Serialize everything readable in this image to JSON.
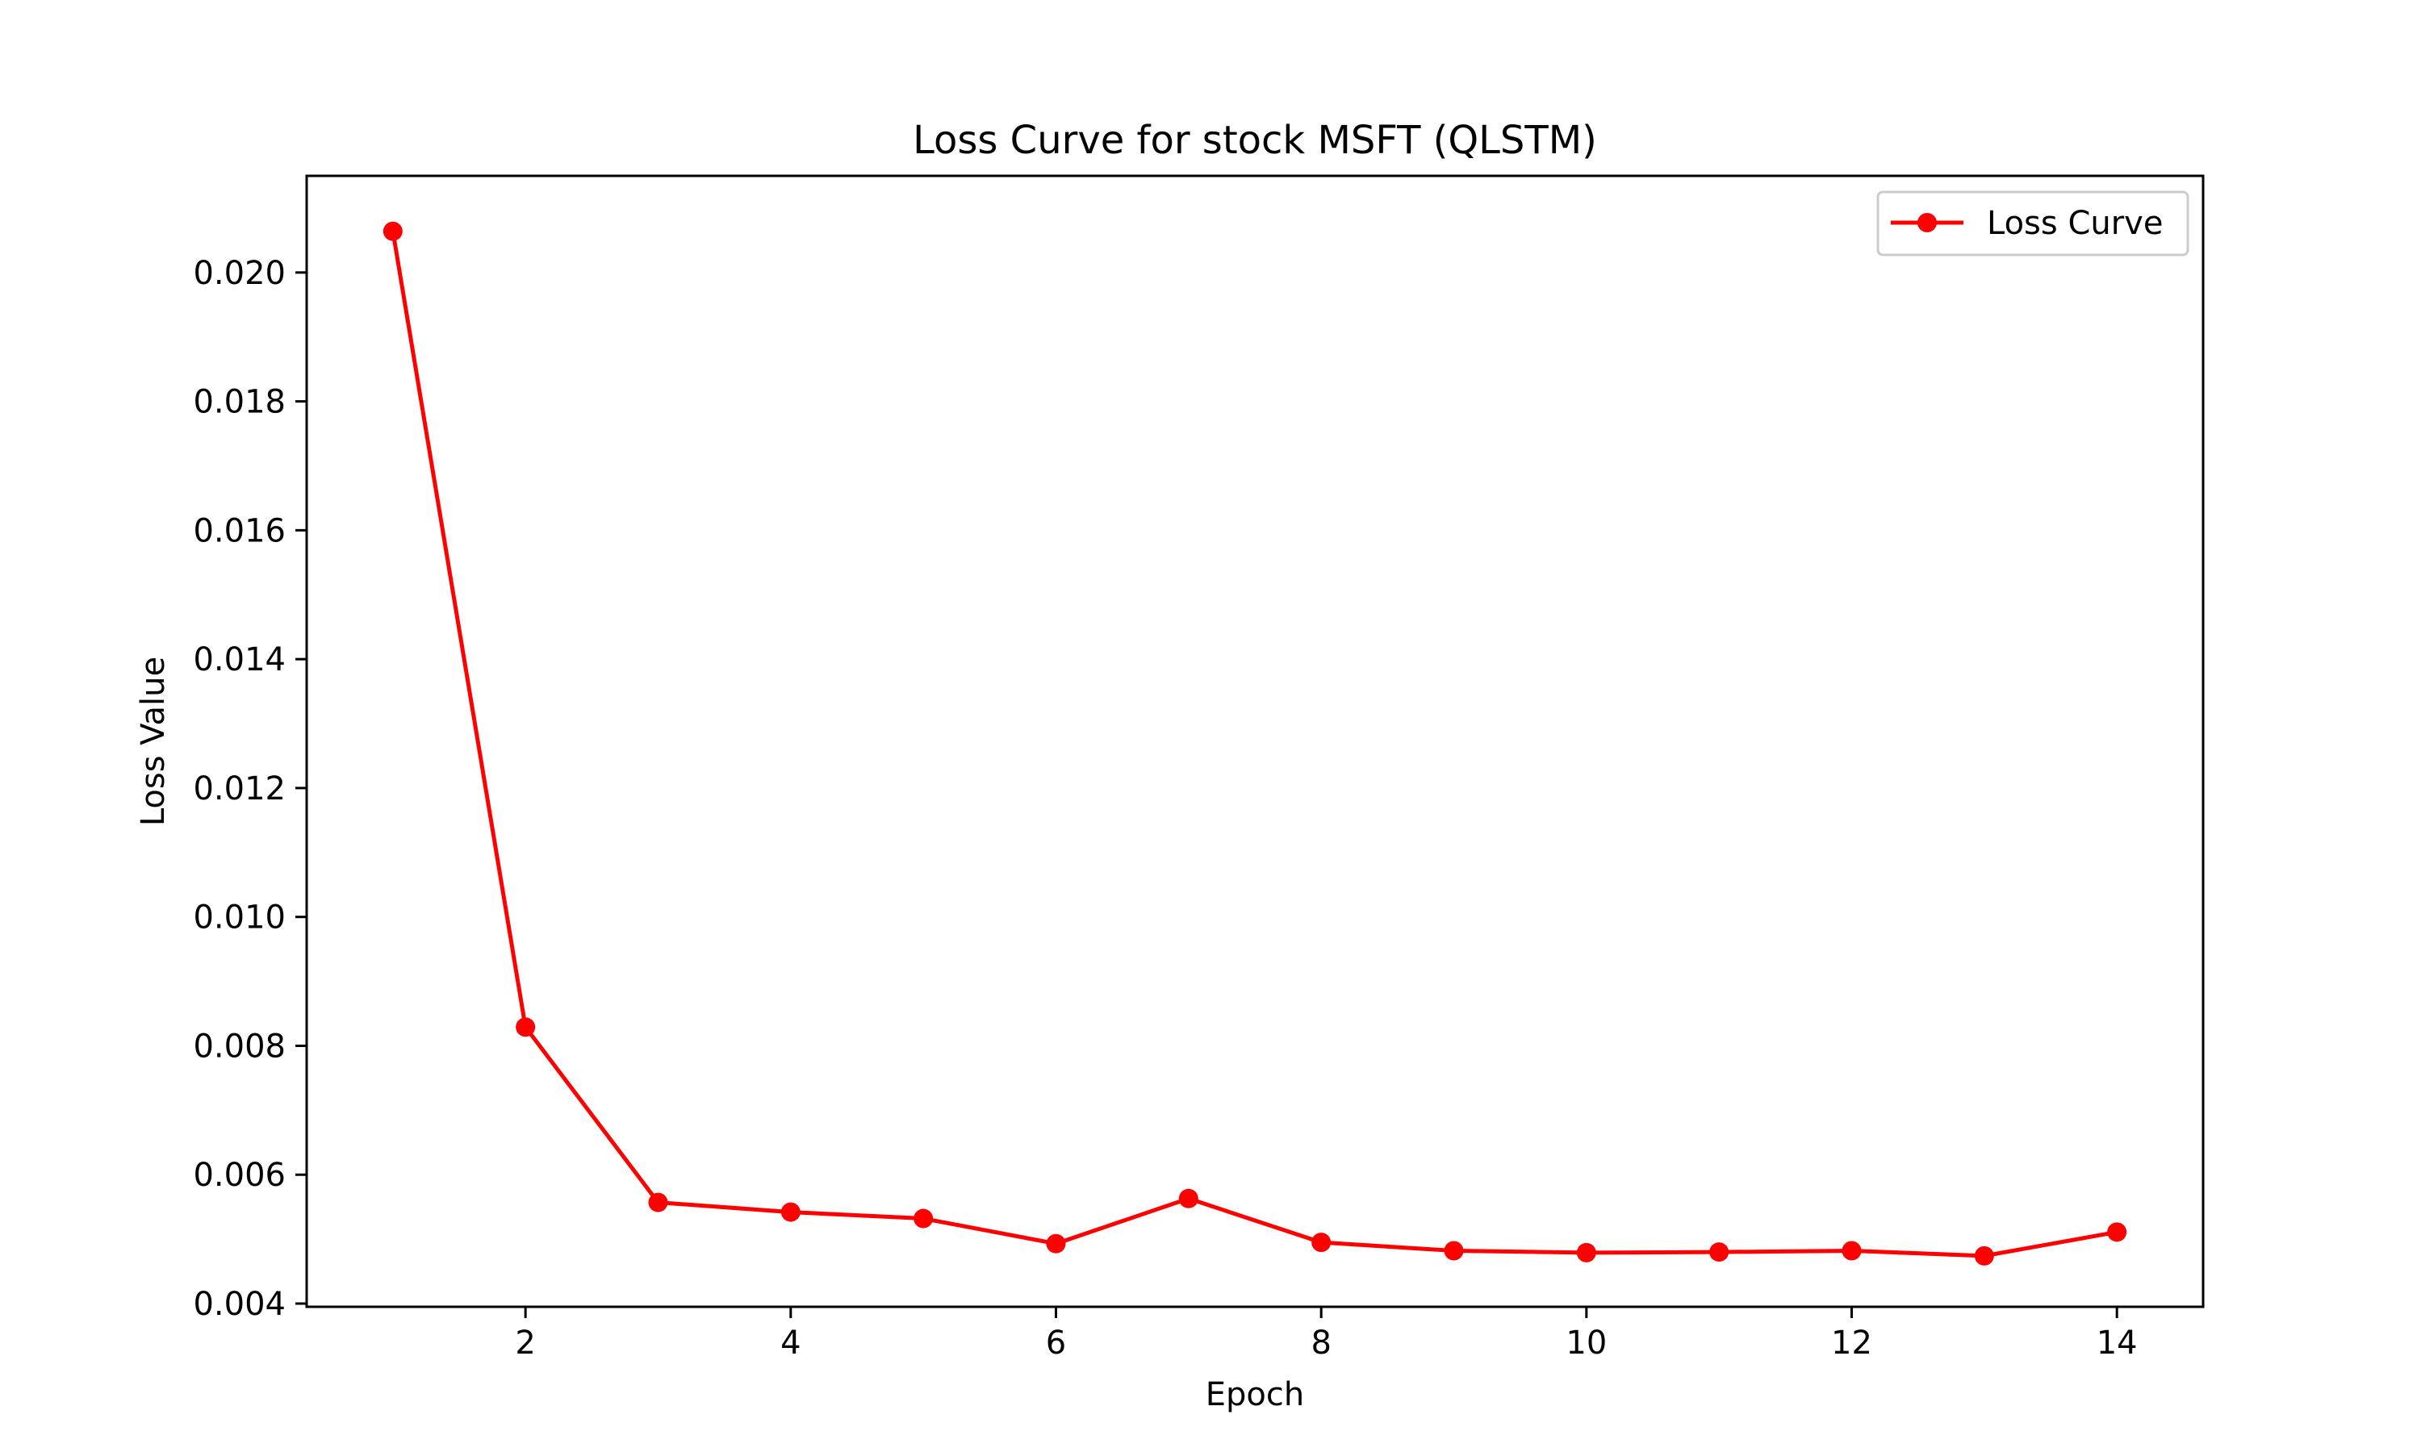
{
  "chart_data": {
    "type": "line",
    "title": "Loss Curve for stock MSFT (QLSTM)",
    "xlabel": "Epoch",
    "ylabel": "Loss Value",
    "xlim": [
      0.35,
      14.65
    ],
    "ylim": [
      0.00395,
      0.0215
    ],
    "x_ticks": [
      2,
      4,
      6,
      8,
      10,
      12,
      14
    ],
    "x_tick_labels": [
      "2",
      "4",
      "6",
      "8",
      "10",
      "12",
      "14"
    ],
    "y_ticks": [
      0.004,
      0.006,
      0.008,
      0.01,
      0.012,
      0.014,
      0.016,
      0.018,
      0.02
    ],
    "y_tick_labels": [
      "0.004",
      "0.006",
      "0.008",
      "0.010",
      "0.012",
      "0.014",
      "0.016",
      "0.018",
      "0.020"
    ],
    "grid": false,
    "legend_position": "top-right",
    "series": [
      {
        "name": "Loss Curve",
        "color": "#ff0000",
        "marker": "circle",
        "x": [
          1,
          2,
          3,
          4,
          5,
          6,
          7,
          8,
          9,
          10,
          11,
          12,
          13,
          14
        ],
        "y": [
          0.02064,
          0.00829,
          0.00557,
          0.00542,
          0.00532,
          0.00493,
          0.00563,
          0.00495,
          0.00482,
          0.00479,
          0.0048,
          0.00482,
          0.00474,
          0.00511
        ]
      }
    ]
  }
}
